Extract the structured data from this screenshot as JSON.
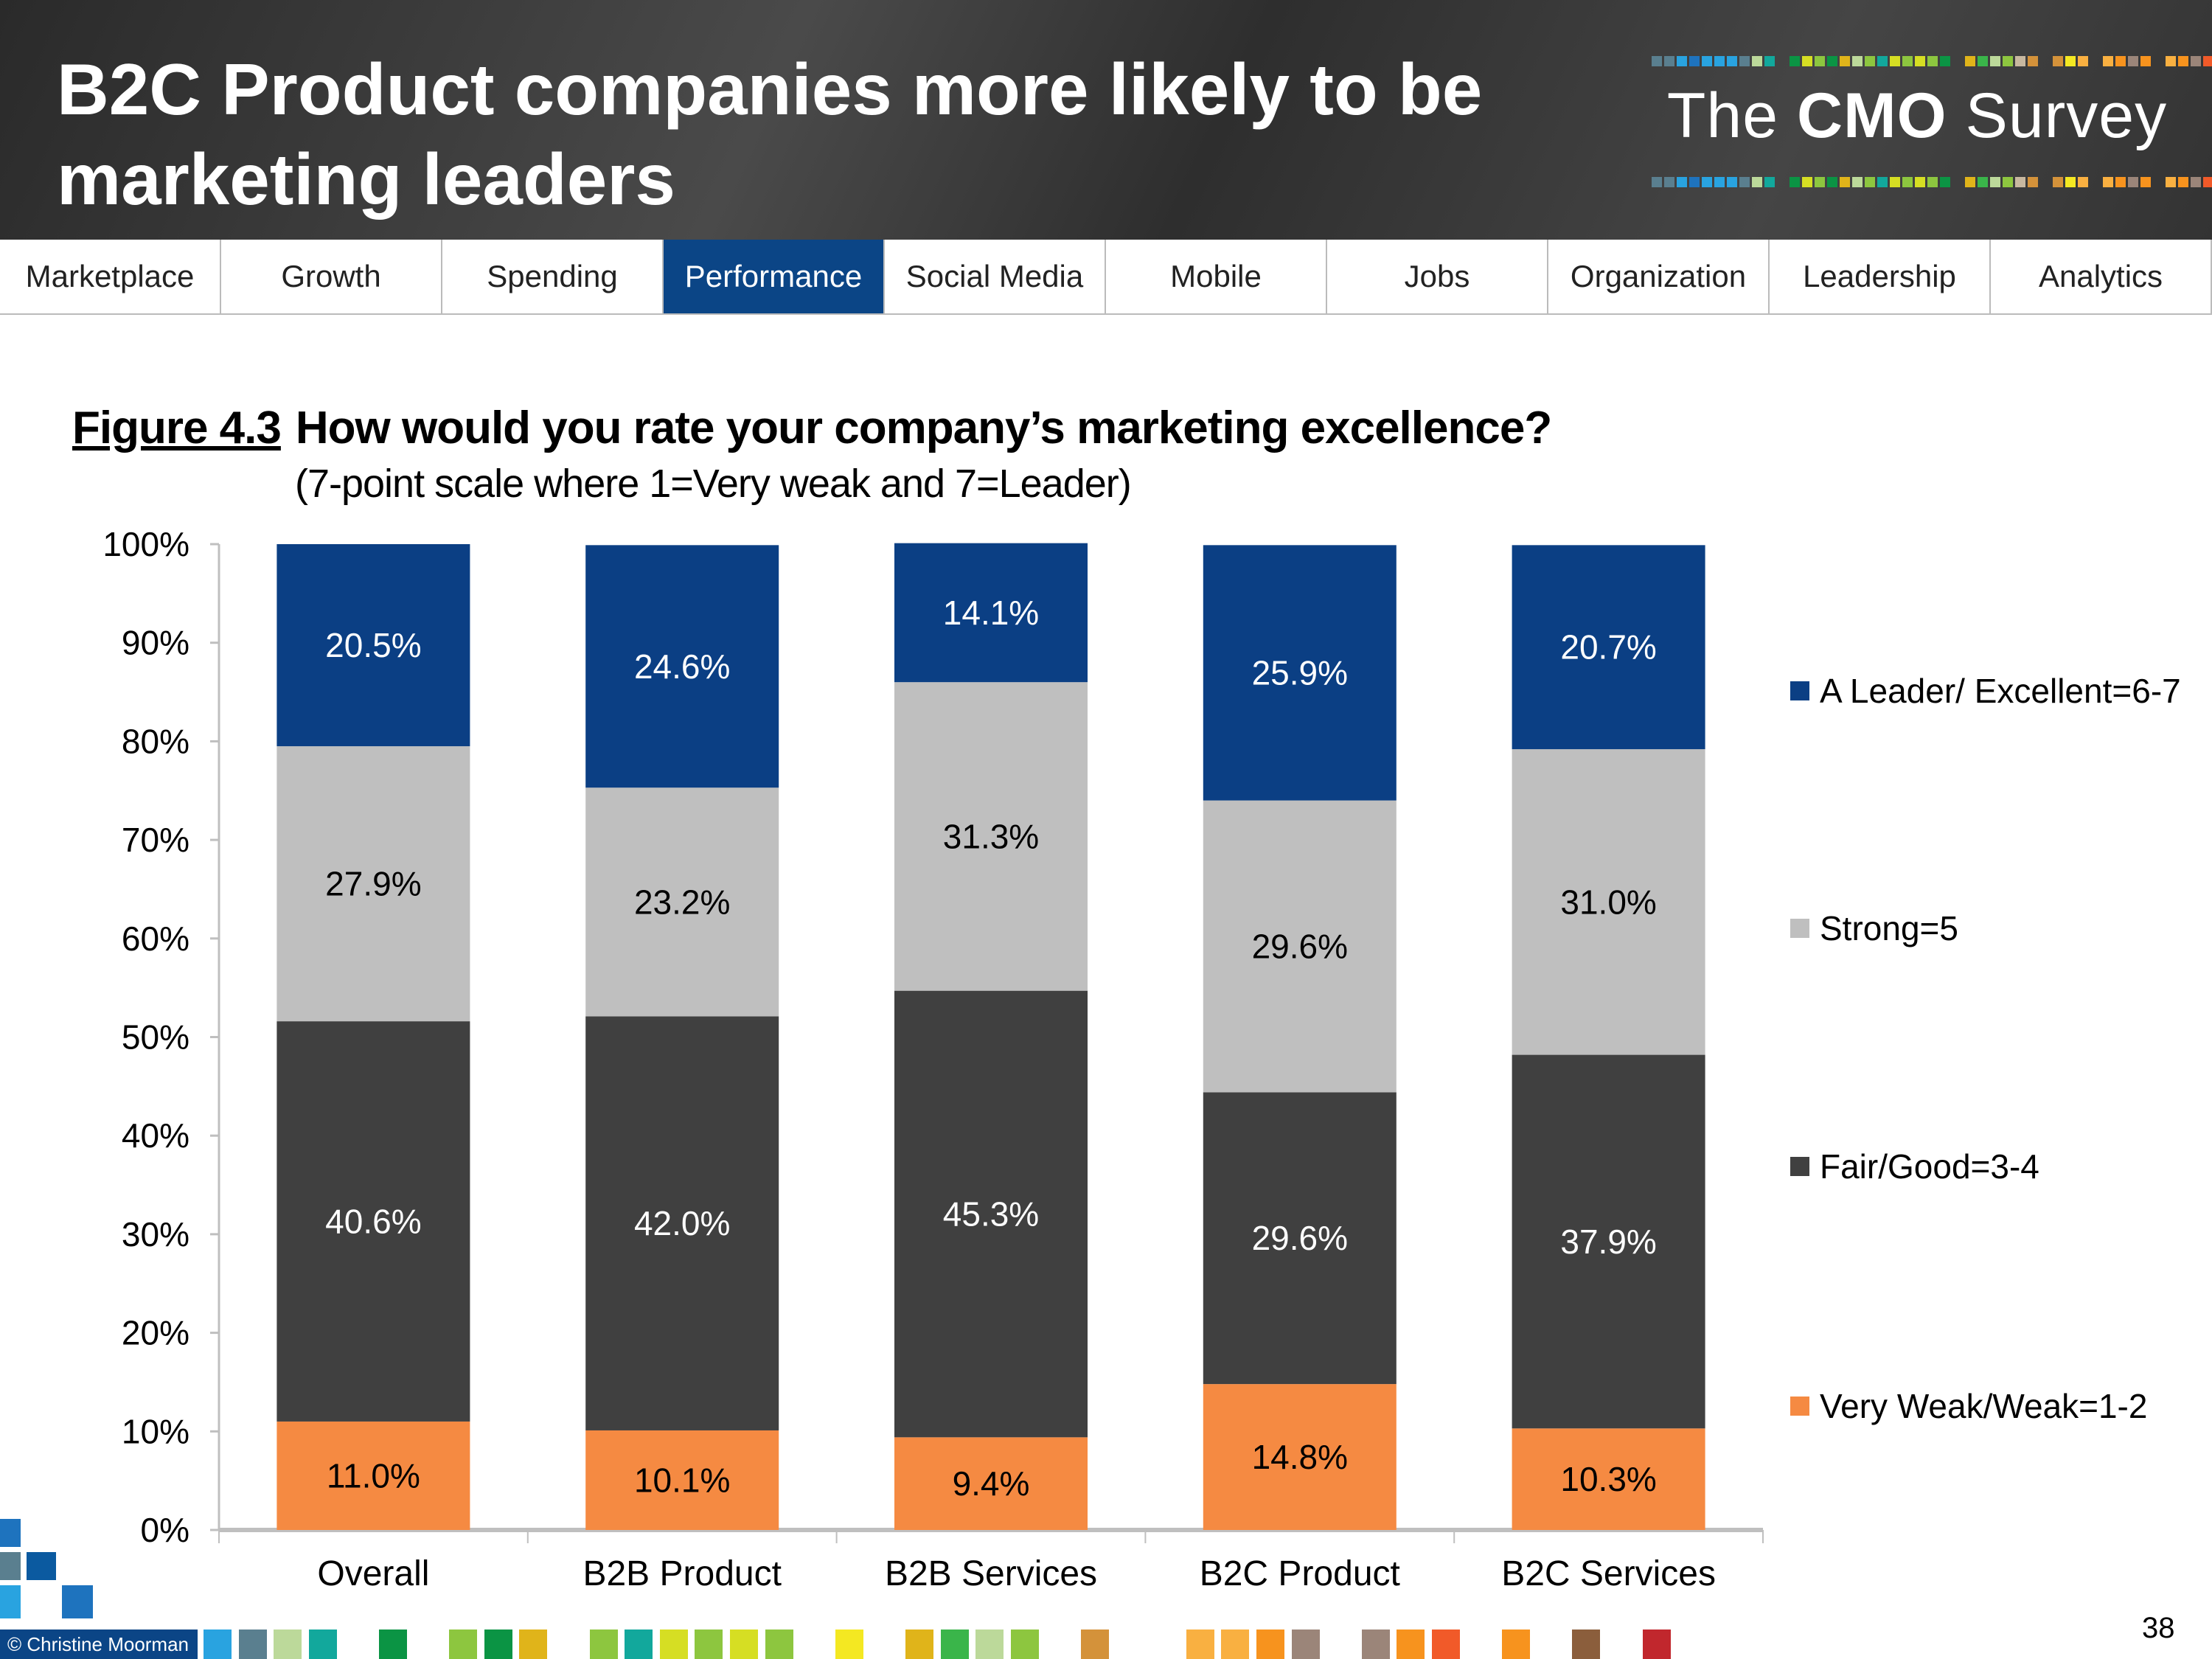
{
  "header": {
    "title": "B2C Product companies more likely to be marketing leaders",
    "logo_text": "The CMO Survey"
  },
  "nav": {
    "tabs": [
      {
        "label": "Marketplace",
        "active": false
      },
      {
        "label": "Growth",
        "active": false
      },
      {
        "label": "Spending",
        "active": false
      },
      {
        "label": "Performance",
        "active": true
      },
      {
        "label": "Social Media",
        "active": false
      },
      {
        "label": "Mobile",
        "active": false
      },
      {
        "label": "Jobs",
        "active": false
      },
      {
        "label": "Organization",
        "active": false
      },
      {
        "label": "Leadership",
        "active": false
      },
      {
        "label": "Analytics",
        "active": false
      }
    ],
    "active_color": "#0b4586"
  },
  "figure": {
    "number": "Figure 4.3",
    "question": "How would you rate your company’s marketing excellence?",
    "subtitle": "(7-point scale where 1=Very weak and 7=Leader)"
  },
  "chart_data": {
    "type": "bar",
    "stacked": true,
    "percent_stacked": true,
    "categories": [
      "Overall",
      "B2B Product",
      "B2B Services",
      "B2C Product",
      "B2C Services"
    ],
    "series": [
      {
        "name": "Very Weak/Weak=1-2",
        "color": "#f58a42",
        "values": [
          11.0,
          10.1,
          9.4,
          14.8,
          10.3
        ],
        "labels": [
          "11.0%",
          "10.1%",
          "9.4%",
          "14.8%",
          "10.3%"
        ]
      },
      {
        "name": "Fair/Good=3-4",
        "color": "#404040",
        "values": [
          40.6,
          42.0,
          45.3,
          29.6,
          37.9
        ],
        "labels": [
          "40.6%",
          "42.0%",
          "45.3%",
          "29.6%",
          "37.9%"
        ]
      },
      {
        "name": "Strong=5",
        "color": "#bfbfbf",
        "values": [
          27.9,
          23.2,
          31.3,
          29.6,
          31.0
        ],
        "labels": [
          "27.9%",
          "23.2%",
          "31.3%",
          "29.6%",
          "31.0%"
        ]
      },
      {
        "name": "A Leader/ Excellent=6-7",
        "color": "#0b3f84",
        "values": [
          20.5,
          24.6,
          14.1,
          25.9,
          20.7
        ],
        "labels": [
          "20.5%",
          "24.6%",
          "14.1%",
          "25.9%",
          "20.7%"
        ]
      }
    ],
    "ylim": [
      0,
      100
    ],
    "yticks": [
      "0%",
      "10%",
      "20%",
      "30%",
      "40%",
      "50%",
      "60%",
      "70%",
      "80%",
      "90%",
      "100%"
    ],
    "legend_position": "right",
    "legend_order": [
      "A Leader/ Excellent=6-7",
      "Strong=5",
      "Fair/Good=3-4",
      "Very Weak/Weak=1-2"
    ],
    "grid": false
  },
  "footer": {
    "copyright": "© Christine Moorman",
    "page_number": "38",
    "squares": [
      "#29a3e0",
      "#5a7f8f",
      "#bcd99a",
      "#12a89c",
      null,
      "#0b9444",
      null,
      "#8dc63f",
      "#0b9444",
      "#e0b41a",
      null,
      "#8dc63f",
      "#12a89c",
      "#d6de23",
      "#8dc63f",
      "#d6de23",
      "#8dc63f",
      null,
      "#f4e822",
      null,
      "#e0b41a",
      "#3ab54a",
      "#bcd99a",
      "#8dc63f",
      null,
      "#d4923a",
      null,
      null,
      "#f9b041",
      "#f9b041",
      "#f7931e",
      "#9b8579",
      null,
      "#9b8579",
      "#f7931e",
      "#f15a29",
      null,
      "#f7931e",
      null,
      "#8b5e3c",
      null,
      "#c1272d"
    ]
  }
}
